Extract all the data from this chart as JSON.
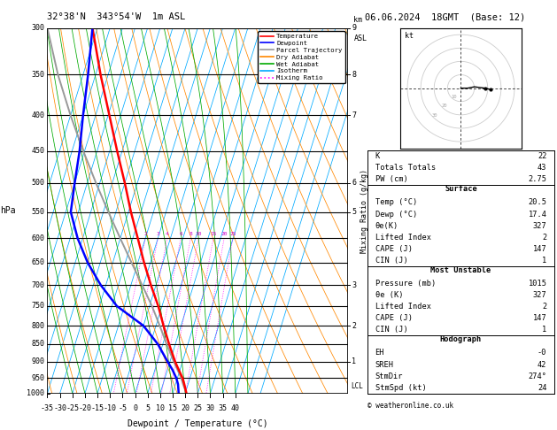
{
  "title_left": "32°38'N  343°54'W  1m ASL",
  "title_right": "06.06.2024  18GMT  (Base: 12)",
  "ylabel_left": "hPa",
  "xlabel": "Dewpoint / Temperature (°C)",
  "mixing_ratio_label": "Mixing Ratio (g/kg)",
  "pressure_levels": [
    300,
    350,
    400,
    450,
    500,
    550,
    600,
    650,
    700,
    750,
    800,
    850,
    900,
    950,
    1000
  ],
  "temp_min": -35,
  "temp_max": 40,
  "pmin": 300,
  "pmax": 1000,
  "skew_degC": 45,
  "legend_items": [
    {
      "label": "Temperature",
      "color": "#ff0000",
      "linestyle": "-"
    },
    {
      "label": "Dewpoint",
      "color": "#0000ff",
      "linestyle": "-"
    },
    {
      "label": "Parcel Trajectory",
      "color": "#999999",
      "linestyle": "-"
    },
    {
      "label": "Dry Adiabat",
      "color": "#ff8800",
      "linestyle": "-"
    },
    {
      "label": "Wet Adiabat",
      "color": "#00aa00",
      "linestyle": "-"
    },
    {
      "label": "Isotherm",
      "color": "#00aaff",
      "linestyle": "-"
    },
    {
      "label": "Mixing Ratio",
      "color": "#ff00ff",
      "linestyle": ":"
    }
  ],
  "km_ticks": [
    {
      "p": 300,
      "km": "9"
    },
    {
      "p": 350,
      "km": "8"
    },
    {
      "p": 400,
      "km": "7"
    },
    {
      "p": 500,
      "km": "6"
    },
    {
      "p": 550,
      "km": "5"
    },
    {
      "p": 700,
      "km": "3"
    },
    {
      "p": 800,
      "km": "2"
    },
    {
      "p": 900,
      "km": "1"
    }
  ],
  "mixing_ratio_values": [
    2,
    3,
    4,
    6,
    8,
    10,
    15,
    20,
    25
  ],
  "sounding_temp": {
    "pressure": [
      1000,
      970,
      950,
      925,
      900,
      850,
      800,
      750,
      700,
      650,
      600,
      550,
      500,
      450,
      400,
      350,
      300
    ],
    "temp": [
      20.5,
      18.5,
      17.0,
      14.5,
      12.0,
      7.5,
      3.0,
      -1.5,
      -7.0,
      -12.5,
      -18.0,
      -24.0,
      -30.0,
      -37.0,
      -44.5,
      -53.0,
      -62.0
    ]
  },
  "sounding_dewp": {
    "pressure": [
      1000,
      970,
      950,
      925,
      900,
      850,
      800,
      750,
      700,
      650,
      600,
      550,
      500,
      450,
      400,
      350,
      300
    ],
    "temp": [
      17.4,
      16.0,
      14.5,
      12.0,
      9.0,
      3.0,
      -5.0,
      -18.0,
      -27.0,
      -35.0,
      -42.0,
      -48.0,
      -50.0,
      -52.0,
      -55.0,
      -58.0,
      -62.0
    ]
  },
  "parcel_trajectory": {
    "pressure": [
      1000,
      970,
      950,
      925,
      900,
      850,
      800,
      750,
      700,
      650,
      600,
      550,
      500,
      450,
      400,
      350,
      300
    ],
    "temp": [
      20.5,
      18.0,
      16.5,
      14.0,
      11.5,
      6.5,
      1.5,
      -4.0,
      -10.5,
      -17.5,
      -25.0,
      -33.0,
      -41.5,
      -50.5,
      -60.0,
      -70.0,
      -80.0
    ]
  },
  "lcl_pressure": 975,
  "stats_top": [
    [
      "K",
      "22"
    ],
    [
      "Totals Totals",
      "43"
    ],
    [
      "PW (cm)",
      "2.75"
    ]
  ],
  "stats_surface_title": "Surface",
  "stats_surface": [
    [
      "Temp (°C)",
      "20.5"
    ],
    [
      "Dewp (°C)",
      "17.4"
    ],
    [
      "θe(K)",
      "327"
    ],
    [
      "Lifted Index",
      "2"
    ],
    [
      "CAPE (J)",
      "147"
    ],
    [
      "CIN (J)",
      "1"
    ]
  ],
  "stats_mu_title": "Most Unstable",
  "stats_mu": [
    [
      "Pressure (mb)",
      "1015"
    ],
    [
      "θe (K)",
      "327"
    ],
    [
      "Lifted Index",
      "2"
    ],
    [
      "CAPE (J)",
      "147"
    ],
    [
      "CIN (J)",
      "1"
    ]
  ],
  "stats_hodo_title": "Hodograph",
  "stats_hodo": [
    [
      "EH",
      "-0"
    ],
    [
      "SREH",
      "42"
    ],
    [
      "StmDir",
      "274°"
    ],
    [
      "StmSpd (kt)",
      "24"
    ]
  ],
  "hodograph": {
    "u": [
      0,
      5,
      10,
      18,
      22
    ],
    "v": [
      0,
      0,
      1,
      0,
      -1
    ],
    "circles": [
      10,
      20,
      30,
      40
    ]
  },
  "copyright": "© weatheronline.co.uk"
}
